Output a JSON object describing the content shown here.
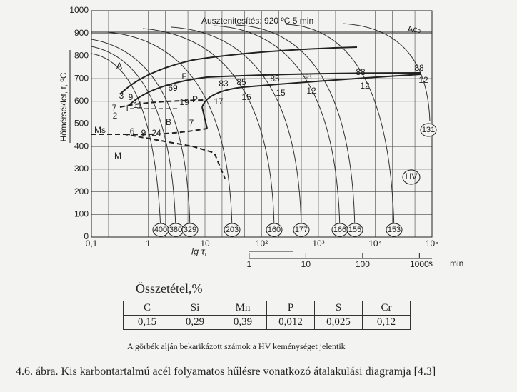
{
  "diagram": {
    "title": "Ausztenitesítés: 920 ºC 5 min",
    "y_label": "Hőmérséklet, t, ºC",
    "x_label": "lg τ,",
    "x_unit": "s",
    "x2_unit": "min",
    "log_x": true,
    "ylim": [
      0,
      1000
    ],
    "yticks": [
      0,
      100,
      200,
      300,
      400,
      500,
      600,
      700,
      800,
      900,
      1000
    ],
    "xlim": [
      0.1,
      100000
    ],
    "xticks": [
      {
        "value": 0.1,
        "label": "0,1"
      },
      1,
      10,
      {
        "value": 100,
        "label": "10²"
      },
      {
        "value": 1000,
        "label": "10³"
      },
      {
        "value": 10000,
        "label": "10⁴"
      },
      {
        "value": 100000,
        "label": "10⁵"
      }
    ],
    "x2ticks": [
      1,
      10,
      100,
      1000
    ],
    "regions": [
      "Ac₃",
      "A",
      "F",
      "P",
      "B",
      "Ms",
      "M"
    ],
    "fractions": [
      3,
      9,
      7,
      2,
      1,
      11,
      6,
      9,
      24,
      69,
      19,
      7,
      83,
      17,
      85,
      15,
      85,
      15,
      88,
      12,
      88,
      12,
      88,
      12
    ],
    "hardness": [
      400,
      380,
      329,
      203,
      160,
      177,
      166,
      155,
      153,
      131
    ],
    "hardness_label": "HV"
  },
  "composition": {
    "title": "Összetétel,%",
    "header": [
      "C",
      "Si",
      "Mn",
      "P",
      "S",
      "Cr"
    ],
    "row": [
      "0,15",
      "0,29",
      "0,39",
      "0,012",
      "0,025",
      "0,12"
    ],
    "note": "A görbék alján bekarikázott számok a HV keménységet jelentik"
  },
  "caption": "4.6. ábra. Kis karbontartalmú acél folyamatos hűlésre vonatkozó átalakulási diagramja [4.3]"
}
